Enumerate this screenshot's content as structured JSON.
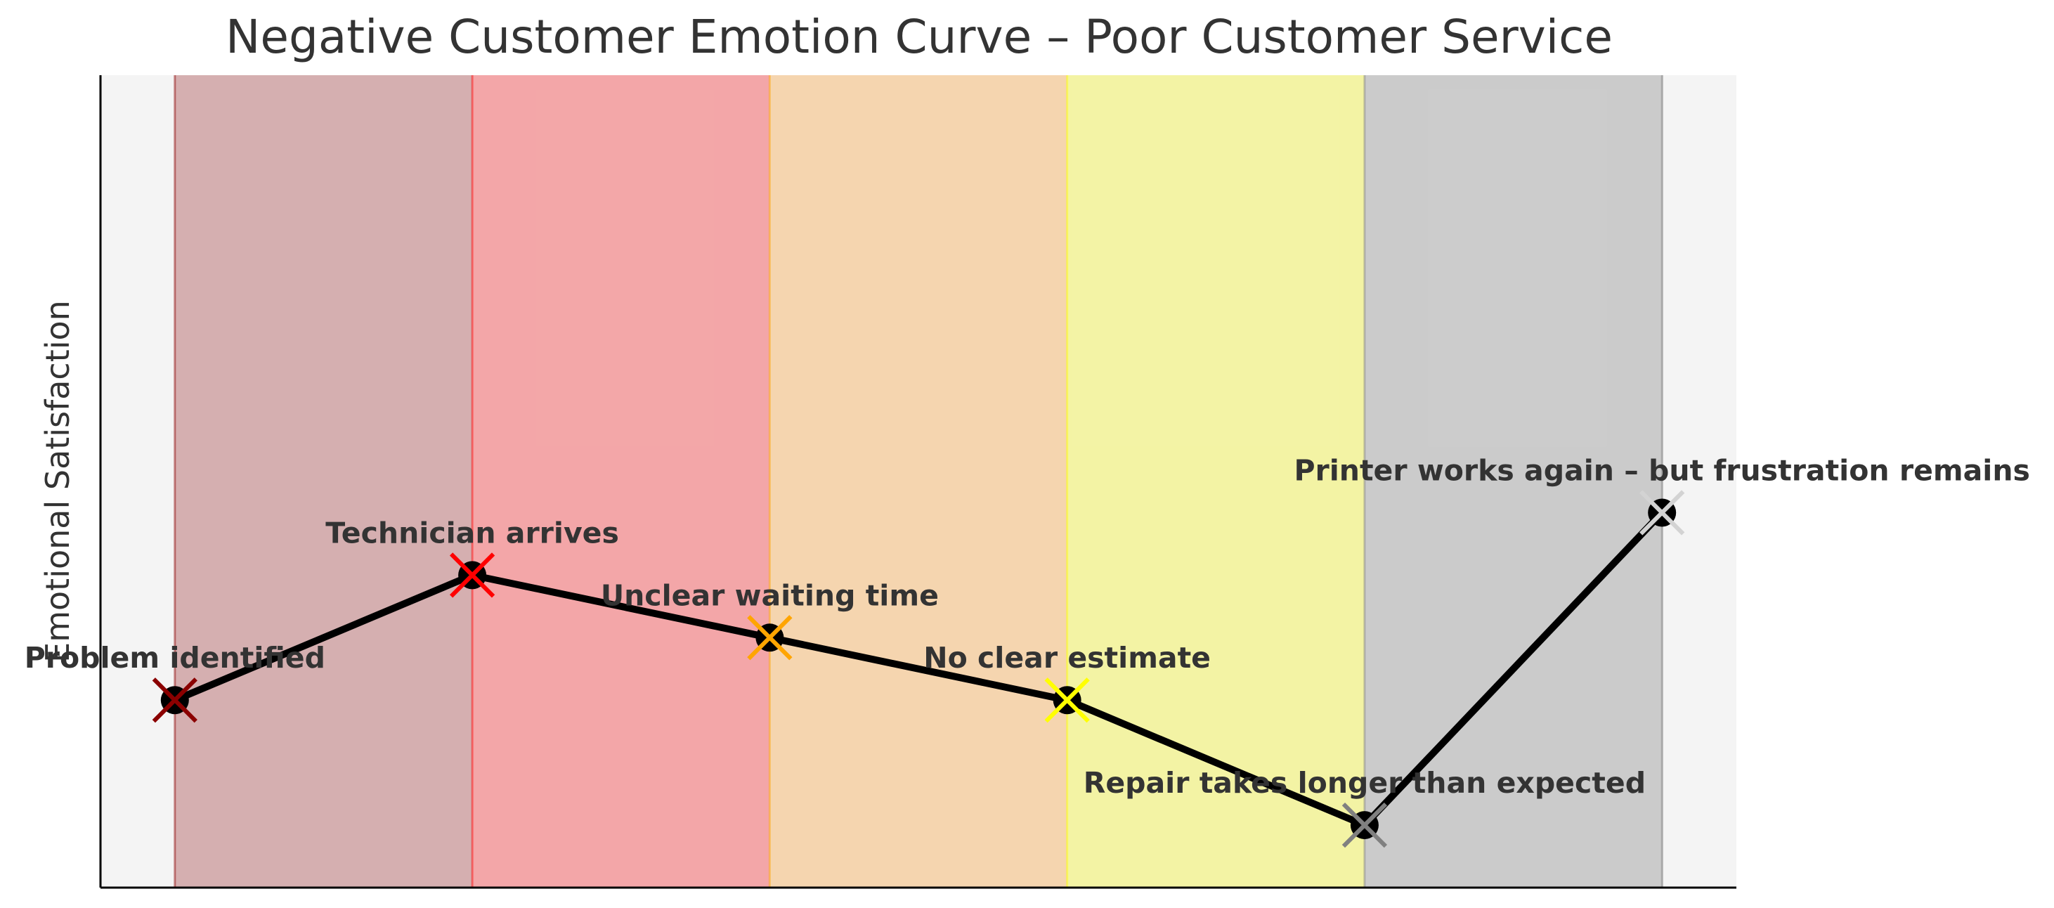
{
  "chart_data": {
    "type": "line",
    "title": "Negative Customer Emotion Curve – Poor Customer Service",
    "xlabel": "",
    "ylabel": "Emotional Satisfaction",
    "xlim": [
      -0.25,
      5.25
    ],
    "ylim": [
      0,
      6.5
    ],
    "grid": false,
    "background_color": "#f4f4f4",
    "line_color": "#000000",
    "points": [
      {
        "x": 0,
        "y": 1.5,
        "label": "Problem identified",
        "color": "#8b0000",
        "band_color": "#c48a8c"
      },
      {
        "x": 1,
        "y": 2.5,
        "label": "Technician arrives",
        "color": "#ff0000",
        "band_color": "#f27d7f"
      },
      {
        "x": 2,
        "y": 2.0,
        "label": "Unclear waiting time",
        "color": "#ffa500",
        "band_color": "#f6c58a"
      },
      {
        "x": 3,
        "y": 1.5,
        "label": "No clear estimate",
        "color": "#ffff00",
        "band_color": "#f2f37a"
      },
      {
        "x": 4,
        "y": 0.5,
        "label": "Repair takes longer than expected",
        "color": "#808080",
        "band_color": "#b6b6b6"
      },
      {
        "x": 5,
        "y": 3.0,
        "label": "Printer works again – but frustration remains",
        "color": "#d3d3d3",
        "band_color": "#bdbdbd"
      }
    ]
  }
}
